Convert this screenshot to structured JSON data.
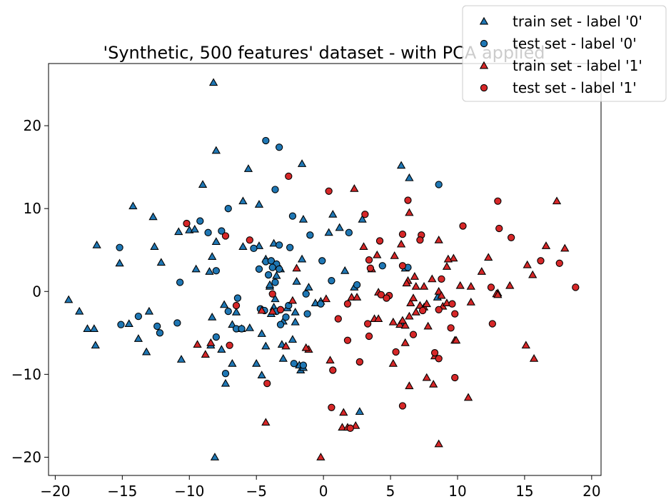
{
  "chart_data": {
    "type": "scatter",
    "title": "'Synthetic, 500 features' dataset - with PCA applied",
    "xlabel": "",
    "ylabel": "",
    "xlim": [
      -20.5,
      20.7
    ],
    "ylim": [
      -22.2,
      27.5
    ],
    "xticks": [
      -20,
      -15,
      -10,
      -5,
      0,
      5,
      10,
      15,
      20
    ],
    "yticks": [
      -20,
      -10,
      0,
      10,
      20
    ],
    "grid": false,
    "legend_position": "top-right",
    "series": [
      {
        "name": "train set - label '0'",
        "marker": "triangle",
        "color": "#1f77b4",
        "points": [
          [
            -8.2,
            25.2
          ],
          [
            -8.0,
            17.0
          ],
          [
            -1.6,
            15.4
          ],
          [
            -5.6,
            14.8
          ],
          [
            -9.0,
            12.9
          ],
          [
            -4.8,
            10.5
          ],
          [
            -14.2,
            10.3
          ],
          [
            -6.0,
            10.9
          ],
          [
            -12.7,
            9.0
          ],
          [
            -10.8,
            7.2
          ],
          [
            -10.0,
            7.4
          ],
          [
            -9.6,
            7.5
          ],
          [
            -8.0,
            6.0
          ],
          [
            -16.9,
            5.6
          ],
          [
            -12.6,
            5.4
          ],
          [
            -15.2,
            3.4
          ],
          [
            -12.1,
            3.5
          ],
          [
            -9.5,
            2.7
          ],
          [
            -8.5,
            2.4
          ],
          [
            -8.3,
            4.2
          ],
          [
            -6.0,
            5.4
          ],
          [
            -4.8,
            5.5
          ],
          [
            -3.7,
            5.8
          ],
          [
            -3.2,
            2.7
          ],
          [
            -1.6,
            3.9
          ],
          [
            -1.5,
            8.7
          ],
          [
            0.4,
            7.1
          ],
          [
            0.7,
            9.3
          ],
          [
            1.2,
            7.7
          ],
          [
            2.9,
            8.7
          ],
          [
            5.8,
            15.2
          ],
          [
            6.4,
            13.7
          ],
          [
            -19.0,
            -1.0
          ],
          [
            -18.2,
            -2.4
          ],
          [
            -17.6,
            -4.5
          ],
          [
            -17.1,
            -4.5
          ],
          [
            -17.0,
            -6.5
          ],
          [
            -14.5,
            -3.9
          ],
          [
            -13.8,
            -5.7
          ],
          [
            -13.0,
            -2.4
          ],
          [
            -13.2,
            -7.3
          ],
          [
            -10.6,
            -8.2
          ],
          [
            -8.4,
            -6.5
          ],
          [
            -8.3,
            -3.1
          ],
          [
            -7.6,
            -7.0
          ],
          [
            -7.4,
            -1.6
          ],
          [
            -7.3,
            -11.1
          ],
          [
            -6.8,
            -4.0
          ],
          [
            -6.8,
            -8.7
          ],
          [
            -6.1,
            -4.5
          ],
          [
            -6.5,
            -2.5
          ],
          [
            -5.5,
            -4.4
          ],
          [
            -5.0,
            -8.7
          ],
          [
            -4.6,
            -5.1
          ],
          [
            -4.6,
            -10.1
          ],
          [
            -4.3,
            -6.6
          ],
          [
            -3.9,
            -2.7
          ],
          [
            -3.1,
            -6.4
          ],
          [
            -3.0,
            -3.6
          ],
          [
            -3.0,
            -8.1
          ],
          [
            -2.7,
            -2.0
          ],
          [
            -2.3,
            -5.8
          ],
          [
            -2.1,
            -2.5
          ],
          [
            -2.1,
            -3.7
          ],
          [
            -1.8,
            -8.9
          ],
          [
            -1.7,
            -9.5
          ],
          [
            -1.5,
            -9.2
          ],
          [
            -3.7,
            -1.9
          ],
          [
            -4.0,
            0.6
          ],
          [
            -3.5,
            1.9
          ],
          [
            -2.0,
            1.2
          ],
          [
            -1.1,
            0.5
          ],
          [
            -0.6,
            -1.4
          ],
          [
            -0.2,
            -1.2
          ],
          [
            1.6,
            2.5
          ],
          [
            2.3,
            0.5
          ],
          [
            2.7,
            -14.5
          ],
          [
            -8.1,
            -20.0
          ],
          [
            6.1,
            2.8
          ],
          [
            5.8,
            -3.8
          ],
          [
            8.5,
            -0.7
          ],
          [
            -4.3,
            3.9
          ],
          [
            -4.0,
            0.8
          ],
          [
            -3.6,
            -0.9
          ]
        ]
      },
      {
        "name": "test set - label '0'",
        "marker": "circle",
        "color": "#1f77b4",
        "points": [
          [
            -4.3,
            18.2
          ],
          [
            -3.3,
            17.4
          ],
          [
            -3.6,
            12.3
          ],
          [
            8.6,
            12.9
          ],
          [
            -7.1,
            10.0
          ],
          [
            -2.3,
            9.1
          ],
          [
            -9.2,
            8.5
          ],
          [
            -8.6,
            7.1
          ],
          [
            -7.6,
            7.3
          ],
          [
            -1.0,
            6.8
          ],
          [
            -3.3,
            5.6
          ],
          [
            -5.2,
            5.2
          ],
          [
            -2.5,
            5.3
          ],
          [
            -15.2,
            5.3
          ],
          [
            -4.3,
            3.6
          ],
          [
            -3.9,
            3.7
          ],
          [
            -3.5,
            3.3
          ],
          [
            -4.8,
            2.7
          ],
          [
            -4.1,
            2.0
          ],
          [
            -3.8,
            2.9
          ],
          [
            -3.3,
            2.7
          ],
          [
            -0.1,
            3.7
          ],
          [
            0.6,
            1.3
          ],
          [
            -8.0,
            2.5
          ],
          [
            -10.7,
            1.1
          ],
          [
            -13.8,
            -3.0
          ],
          [
            -12.4,
            -4.2
          ],
          [
            -12.2,
            -5.0
          ],
          [
            -10.9,
            -3.8
          ],
          [
            -15.1,
            -4.0
          ],
          [
            -8.0,
            -5.5
          ],
          [
            -7.1,
            -2.4
          ],
          [
            -6.4,
            -0.8
          ],
          [
            -6.5,
            -4.5
          ],
          [
            -6.1,
            -4.5
          ],
          [
            -4.7,
            -2.1
          ],
          [
            -4.4,
            -2.3
          ],
          [
            -3.5,
            -2.4
          ],
          [
            -3.2,
            -4.0
          ],
          [
            -2.8,
            -3.1
          ],
          [
            -1.5,
            -8.9
          ],
          [
            -2.2,
            -8.7
          ],
          [
            -2.6,
            -1.7
          ],
          [
            -1.2,
            -2.7
          ],
          [
            -1.3,
            -0.3
          ],
          [
            -0.2,
            -1.5
          ],
          [
            -7.3,
            -9.9
          ],
          [
            1.9,
            7.1
          ],
          [
            2.5,
            0.8
          ],
          [
            4.4,
            3.1
          ],
          [
            6.3,
            2.9
          ],
          [
            -3.6,
            1.1
          ]
        ]
      },
      {
        "name": "train set - label '1'",
        "marker": "triangle",
        "color": "#d62728",
        "points": [
          [
            17.4,
            10.9
          ],
          [
            2.3,
            12.4
          ],
          [
            6.4,
            9.5
          ],
          [
            3.0,
            5.4
          ],
          [
            4.0,
            4.4
          ],
          [
            5.3,
            4.3
          ],
          [
            5.8,
            5.7
          ],
          [
            8.6,
            6.2
          ],
          [
            9.7,
            4.0
          ],
          [
            9.3,
            3.9
          ],
          [
            9.2,
            3.0
          ],
          [
            8.1,
            1.5
          ],
          [
            6.9,
            0.6
          ],
          [
            6.3,
            1.3
          ],
          [
            6.8,
            1.8
          ],
          [
            6.2,
            1.0
          ],
          [
            7.5,
            0.6
          ],
          [
            8.6,
            0.0
          ],
          [
            10.2,
            0.7
          ],
          [
            11.0,
            0.6
          ],
          [
            11.8,
            2.4
          ],
          [
            12.3,
            4.1
          ],
          [
            13.0,
            -0.2
          ],
          [
            13.9,
            0.7
          ],
          [
            15.2,
            3.2
          ],
          [
            15.6,
            2.0
          ],
          [
            16.6,
            5.5
          ],
          [
            18.0,
            5.2
          ],
          [
            3.6,
            2.7
          ],
          [
            3.8,
            -3.3
          ],
          [
            4.1,
            -0.1
          ],
          [
            5.2,
            -3.7
          ],
          [
            5.7,
            -4.0
          ],
          [
            6.1,
            -4.1
          ],
          [
            6.4,
            -3.0
          ],
          [
            6.5,
            -1.4
          ],
          [
            6.7,
            -0.8
          ],
          [
            6.9,
            -2.5
          ],
          [
            7.2,
            -1.7
          ],
          [
            7.5,
            -1.9
          ],
          [
            7.7,
            -1.5
          ],
          [
            7.8,
            -4.2
          ],
          [
            8.8,
            -0.5
          ],
          [
            8.9,
            -1.8
          ],
          [
            9.2,
            -1.4
          ],
          [
            9.8,
            -5.9
          ],
          [
            9.9,
            -5.9
          ],
          [
            11.0,
            -1.3
          ],
          [
            12.9,
            -0.3
          ],
          [
            13.0,
            -0.4
          ],
          [
            15.1,
            -6.5
          ],
          [
            15.7,
            -8.1
          ],
          [
            5.2,
            -8.7
          ],
          [
            6.4,
            -11.4
          ],
          [
            7.7,
            -10.4
          ],
          [
            8.2,
            -11.2
          ],
          [
            8.3,
            -7.8
          ],
          [
            10.8,
            -12.8
          ],
          [
            8.6,
            -18.4
          ],
          [
            6.1,
            -6.2
          ],
          [
            1.5,
            -14.6
          ],
          [
            1.4,
            -16.4
          ],
          [
            1.8,
            -16.4
          ],
          [
            2.4,
            -16.2
          ],
          [
            0.5,
            -8.3
          ],
          [
            0.2,
            -0.9
          ],
          [
            2.1,
            -0.7
          ],
          [
            2.5,
            -0.7
          ],
          [
            -0.2,
            -20.0
          ],
          [
            -4.3,
            -15.8
          ],
          [
            -2.3,
            -1.1
          ],
          [
            -3.8,
            -2.4
          ],
          [
            -4.6,
            -2.3
          ],
          [
            -1.1,
            -7.0
          ],
          [
            -1.3,
            -6.8
          ],
          [
            -2.8,
            -6.6
          ],
          [
            -8.8,
            -7.6
          ],
          [
            -9.4,
            -6.4
          ],
          [
            -8.4,
            -6.2
          ],
          [
            -2.0,
            2.8
          ],
          [
            5.9,
            -3.5
          ],
          [
            4.1,
            -3.3
          ]
        ]
      },
      {
        "name": "test set - label '1'",
        "marker": "circle",
        "color": "#d62728",
        "points": [
          [
            -2.6,
            13.9
          ],
          [
            0.4,
            12.1
          ],
          [
            6.3,
            11.0
          ],
          [
            13.0,
            10.9
          ],
          [
            3.1,
            9.3
          ],
          [
            10.4,
            7.9
          ],
          [
            13.1,
            7.6
          ],
          [
            7.3,
            6.8
          ],
          [
            7.2,
            6.2
          ],
          [
            5.9,
            6.9
          ],
          [
            4.2,
            6.1
          ],
          [
            -10.2,
            8.2
          ],
          [
            -7.3,
            6.7
          ],
          [
            -5.5,
            6.2
          ],
          [
            3.5,
            2.8
          ],
          [
            3.4,
            3.8
          ],
          [
            5.9,
            3.1
          ],
          [
            8.8,
            1.5
          ],
          [
            14.0,
            6.5
          ],
          [
            16.2,
            3.7
          ],
          [
            17.6,
            3.4
          ],
          [
            18.8,
            0.5
          ],
          [
            12.5,
            0.5
          ],
          [
            9.6,
            -1.5
          ],
          [
            8.6,
            -2.2
          ],
          [
            7.4,
            -2.3
          ],
          [
            4.3,
            -0.4
          ],
          [
            4.9,
            -0.5
          ],
          [
            4.7,
            -0.8
          ],
          [
            3.3,
            -3.9
          ],
          [
            3.4,
            -5.4
          ],
          [
            1.8,
            -1.5
          ],
          [
            1.1,
            -3.3
          ],
          [
            1.8,
            -5.9
          ],
          [
            2.7,
            -8.5
          ],
          [
            5.4,
            -7.3
          ],
          [
            6.7,
            -5.2
          ],
          [
            8.3,
            -7.4
          ],
          [
            8.6,
            -8.1
          ],
          [
            9.5,
            -4.4
          ],
          [
            9.8,
            -2.7
          ],
          [
            12.6,
            -3.9
          ],
          [
            9.8,
            -10.4
          ],
          [
            5.9,
            -13.8
          ],
          [
            0.6,
            -14.0
          ],
          [
            0.7,
            -9.5
          ],
          [
            2.0,
            -16.5
          ],
          [
            -4.2,
            -11.1
          ],
          [
            -3.2,
            -2.2
          ],
          [
            -3.8,
            -0.3
          ],
          [
            -7.0,
            -6.5
          ],
          [
            -6.5,
            -1.7
          ]
        ]
      }
    ]
  }
}
